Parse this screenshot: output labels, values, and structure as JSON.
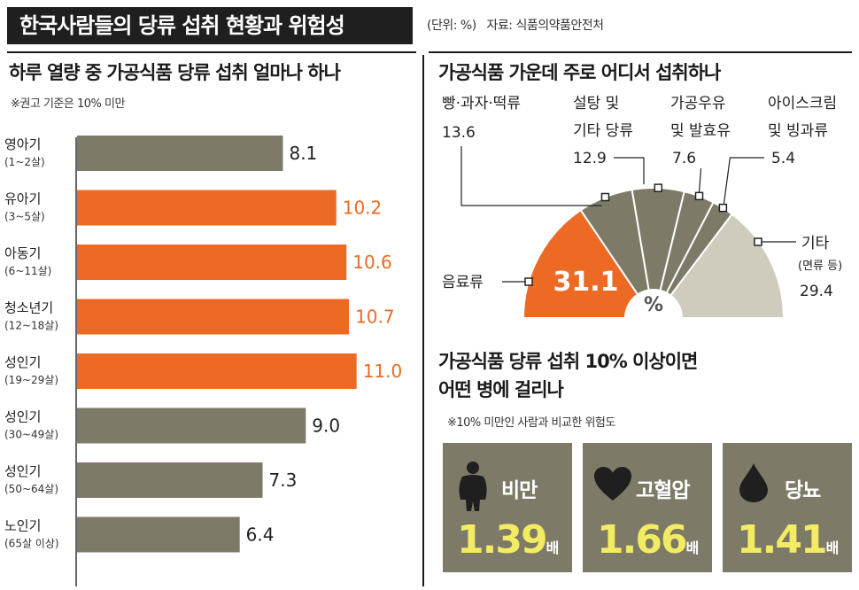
{
  "header": {
    "title": "한국사람들의 당류 섭취 현황과 위험성",
    "unit": "(단위: %)",
    "source": "자료: 식품의약품안전처"
  },
  "colors": {
    "highlight": "#ec6a24",
    "neutral": "#7d7a68",
    "other": "#cfcbbd",
    "risk_value": "#f3ec62"
  },
  "left": {
    "title": "하루 열량 중 가공식품 당류 섭취 얼마나 하나",
    "note": "※권고 기준은 10% 미만",
    "threshold": 10
  },
  "right_top": {
    "title": "가공식품 가운데 주로 어디서 섭취하나",
    "center_label": "%"
  },
  "right_bottom": {
    "title_line1": "가공식품 당류 섭취 10% 이상이면",
    "title_line2": "어떤 병에 걸리나",
    "note": "※10% 미만인 사람과 비교한 위험도",
    "risks": [
      {
        "name": "비만",
        "value": "1.39",
        "unit": "배",
        "icon": "body-icon"
      },
      {
        "name": "고혈압",
        "value": "1.66",
        "unit": "배",
        "icon": "heart-icon"
      },
      {
        "name": "당뇨",
        "value": "1.41",
        "unit": "배",
        "icon": "drop-icon"
      }
    ]
  },
  "chart_data": [
    {
      "type": "bar",
      "orientation": "horizontal",
      "title": "하루 열량 중 가공식품 당류 섭취 얼마나 하나",
      "categories": [
        {
          "name": "영아기",
          "sub": "(1~2살)"
        },
        {
          "name": "유아기",
          "sub": "(3~5살)"
        },
        {
          "name": "아동기",
          "sub": "(6~11살)"
        },
        {
          "name": "청소년기",
          "sub": "(12~18살)"
        },
        {
          "name": "성인기",
          "sub": "(19~29살)"
        },
        {
          "name": "성인기",
          "sub": "(30~49살)"
        },
        {
          "name": "성인기",
          "sub": "(50~64살)"
        },
        {
          "name": "노인기",
          "sub": "(65살 이상)"
        }
      ],
      "values": [
        8.1,
        10.2,
        10.6,
        10.7,
        11.0,
        9.0,
        7.3,
        6.4
      ],
      "value_labels": [
        "8.1",
        "10.2",
        "10.6",
        "10.7",
        "11.0",
        "9.0",
        "7.3",
        "6.4"
      ]
    },
    {
      "type": "pie",
      "shape": "semicircle",
      "title": "가공식품 가운데 주로 어디서 섭취하나",
      "slices": [
        {
          "label": "음료류",
          "value": 31.1,
          "value_label": "31.1",
          "color": "#ec6a24"
        },
        {
          "label": "빵·과자·떡류",
          "value": 13.6,
          "value_label": "13.6",
          "color": "#7d7a68"
        },
        {
          "label": "설탕 및 기타 당류",
          "value": 12.9,
          "value_label": "12.9",
          "color": "#7d7a68"
        },
        {
          "label": "가공우유 및 발효유",
          "value": 7.6,
          "value_label": "7.6",
          "color": "#7d7a68"
        },
        {
          "label": "아이스크림 및 빙과류",
          "value": 5.4,
          "value_label": "5.4",
          "color": "#7d7a68"
        },
        {
          "label": "기타",
          "sublabel": "(면류 등)",
          "value": 29.4,
          "value_label": "29.4",
          "color": "#cfcbbd"
        }
      ]
    }
  ]
}
